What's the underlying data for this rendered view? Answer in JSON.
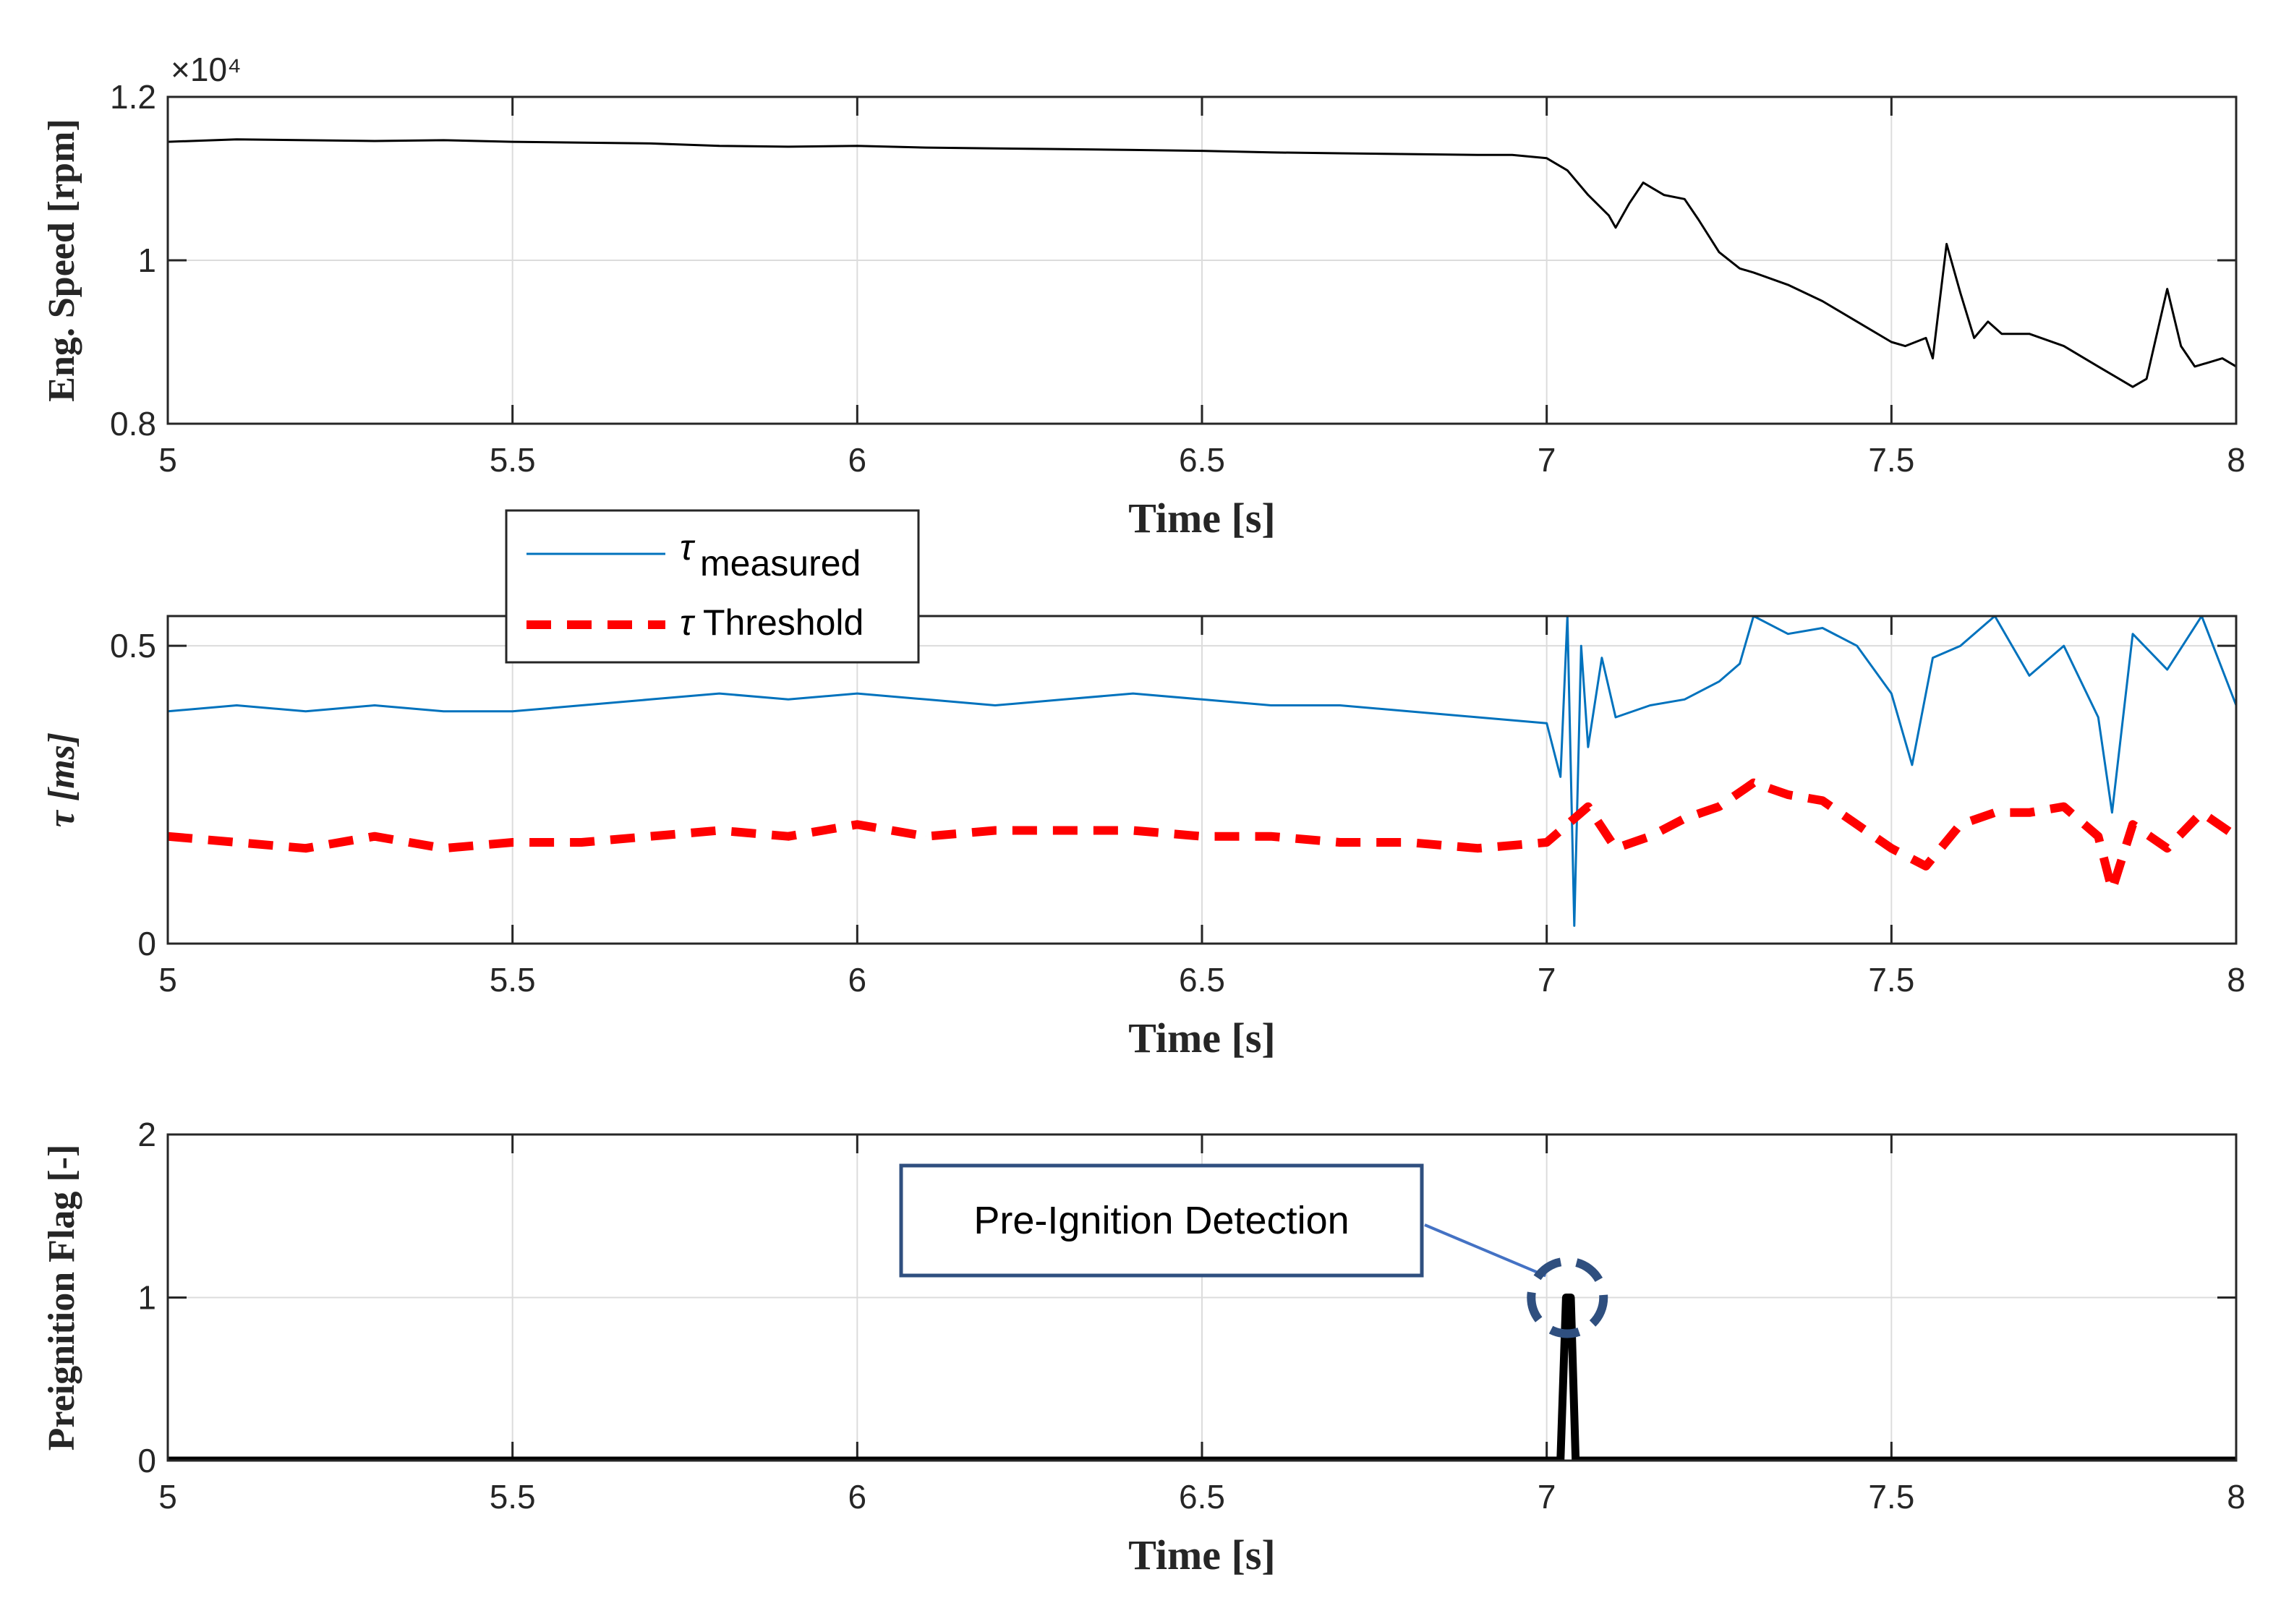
{
  "chart_data": [
    {
      "type": "line",
      "xlabel": "Time [s]",
      "ylabel": "Eng. Speed [rpm]",
      "xlim": [
        5,
        8
      ],
      "ylim": [
        8000,
        12000
      ],
      "exponent_label": "×10⁴",
      "xticks": [
        "5",
        "5.5",
        "6",
        "6.5",
        "7",
        "7.5",
        "8"
      ],
      "yticks": [
        "0.8",
        "1",
        "1.2"
      ],
      "series": [
        {
          "name": "Engine speed",
          "color": "#000000",
          "x": [
            5.0,
            5.1,
            5.2,
            5.3,
            5.4,
            5.5,
            5.6,
            5.7,
            5.8,
            5.9,
            6.0,
            6.1,
            6.2,
            6.3,
            6.4,
            6.5,
            6.6,
            6.7,
            6.8,
            6.9,
            6.95,
            7.0,
            7.03,
            7.06,
            7.09,
            7.1,
            7.12,
            7.14,
            7.17,
            7.2,
            7.22,
            7.25,
            7.28,
            7.3,
            7.35,
            7.4,
            7.45,
            7.5,
            7.52,
            7.55,
            7.56,
            7.58,
            7.6,
            7.62,
            7.64,
            7.66,
            7.7,
            7.75,
            7.8,
            7.85,
            7.87,
            7.9,
            7.92,
            7.94,
            7.96,
            7.98,
            8.0
          ],
          "y": [
            11450,
            11480,
            11470,
            11460,
            11470,
            11450,
            11440,
            11430,
            11400,
            11390,
            11400,
            11380,
            11370,
            11360,
            11350,
            11340,
            11320,
            11310,
            11300,
            11290,
            11290,
            11250,
            11100,
            10800,
            10550,
            10400,
            10700,
            10950,
            10800,
            10750,
            10500,
            10100,
            9900,
            9850,
            9700,
            9500,
            9250,
            9000,
            8950,
            9050,
            8800,
            10200,
            9600,
            9050,
            9250,
            9100,
            9100,
            8950,
            8700,
            8450,
            8550,
            9650,
            8950,
            8700,
            8750,
            8800,
            8700
          ]
        }
      ]
    },
    {
      "type": "line",
      "xlabel": "Time [s]",
      "ylabel": "τ [ms]",
      "xlim": [
        5,
        8
      ],
      "ylim": [
        0,
        0.55
      ],
      "xticks": [
        "5",
        "5.5",
        "6",
        "6.5",
        "7",
        "7.5",
        "8"
      ],
      "yticks": [
        "0",
        "0.5"
      ],
      "legend": {
        "location": "top-left",
        "entries": [
          {
            "symbol": "τ",
            "label": "measured",
            "style": "subscript"
          },
          {
            "symbol": "τ",
            "label": "Threshold",
            "style": "inline"
          }
        ]
      },
      "series": [
        {
          "name": "τ measured",
          "color": "#0072bd",
          "line_style": "solid",
          "x": [
            5.0,
            5.1,
            5.2,
            5.3,
            5.4,
            5.5,
            5.6,
            5.7,
            5.8,
            5.9,
            6.0,
            6.1,
            6.2,
            6.3,
            6.4,
            6.5,
            6.6,
            6.7,
            6.8,
            6.9,
            7.0,
            7.02,
            7.03,
            7.04,
            7.05,
            7.06,
            7.08,
            7.1,
            7.15,
            7.2,
            7.25,
            7.28,
            7.3,
            7.35,
            7.4,
            7.45,
            7.5,
            7.53,
            7.56,
            7.6,
            7.65,
            7.7,
            7.75,
            7.8,
            7.82,
            7.85,
            7.9,
            7.95,
            8.0
          ],
          "y": [
            0.39,
            0.4,
            0.39,
            0.4,
            0.39,
            0.39,
            0.4,
            0.41,
            0.42,
            0.41,
            0.42,
            0.41,
            0.4,
            0.41,
            0.42,
            0.41,
            0.4,
            0.4,
            0.39,
            0.38,
            0.37,
            0.28,
            0.55,
            0.03,
            0.5,
            0.33,
            0.48,
            0.38,
            0.4,
            0.41,
            0.44,
            0.47,
            0.55,
            0.52,
            0.53,
            0.5,
            0.42,
            0.3,
            0.48,
            0.5,
            0.55,
            0.45,
            0.5,
            0.38,
            0.22,
            0.52,
            0.46,
            0.55,
            0.4
          ]
        },
        {
          "name": "τ Threshold",
          "color": "#ff0000",
          "line_style": "dashed",
          "x": [
            5.0,
            5.1,
            5.2,
            5.3,
            5.4,
            5.5,
            5.6,
            5.7,
            5.8,
            5.9,
            6.0,
            6.1,
            6.2,
            6.3,
            6.4,
            6.5,
            6.6,
            6.7,
            6.8,
            6.9,
            7.0,
            7.03,
            7.06,
            7.1,
            7.15,
            7.2,
            7.25,
            7.3,
            7.35,
            7.4,
            7.45,
            7.5,
            7.55,
            7.6,
            7.65,
            7.7,
            7.75,
            7.8,
            7.82,
            7.85,
            7.9,
            7.95,
            8.0
          ],
          "y": [
            0.18,
            0.17,
            0.16,
            0.18,
            0.16,
            0.17,
            0.17,
            0.18,
            0.19,
            0.18,
            0.2,
            0.18,
            0.19,
            0.19,
            0.19,
            0.18,
            0.18,
            0.17,
            0.17,
            0.16,
            0.17,
            0.2,
            0.23,
            0.16,
            0.18,
            0.21,
            0.23,
            0.27,
            0.25,
            0.24,
            0.2,
            0.16,
            0.13,
            0.2,
            0.22,
            0.22,
            0.23,
            0.18,
            0.09,
            0.2,
            0.16,
            0.22,
            0.18
          ]
        }
      ]
    },
    {
      "type": "line",
      "xlabel": "Time [s]",
      "ylabel": "Preignition Flag [-]",
      "xlim": [
        5,
        8
      ],
      "ylim": [
        0,
        2
      ],
      "xticks": [
        "5",
        "5.5",
        "6",
        "6.5",
        "7",
        "7.5",
        "8"
      ],
      "yticks": [
        "0",
        "1",
        "2"
      ],
      "annotation": {
        "text": "Pre-Ignition Detection",
        "x": 7.03,
        "y": 1
      },
      "series": [
        {
          "name": "Preignition flag",
          "color": "#000000",
          "x": [
            5.0,
            7.02,
            7.028,
            7.035,
            7.042,
            8.0
          ],
          "y": [
            0,
            0,
            1,
            1,
            0,
            0
          ]
        }
      ]
    }
  ]
}
